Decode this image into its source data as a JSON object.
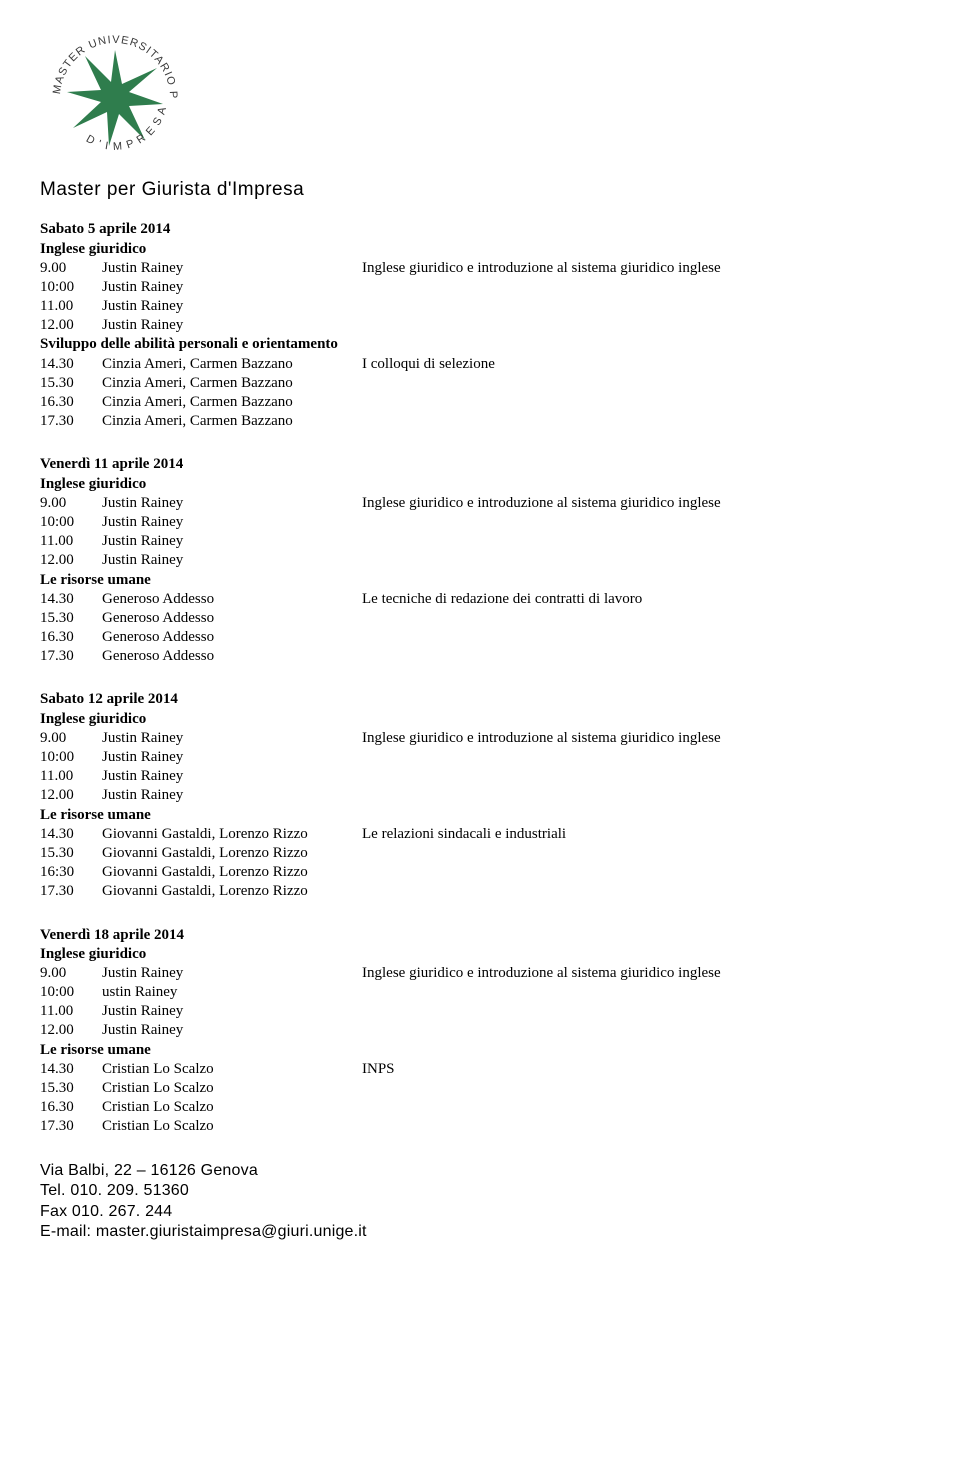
{
  "logo": {
    "circle_text": "MASTER UNIVERSITARIO PER GIURISTA D'IMPRESA",
    "star_color": "#2f7d4d",
    "circle_text_color": "#3a3a3a"
  },
  "header_title": "Master per Giurista d'Impresa",
  "days": [
    {
      "title": "Sabato 5 aprile 2014",
      "blocks": [
        {
          "heading": "Inglese giuridico",
          "rows": [
            {
              "time": " 9.00",
              "name": "Justin Rainey",
              "topic": "Inglese giuridico e introduzione al sistema giuridico inglese"
            },
            {
              "time": "10:00",
              "name": "Justin Rainey",
              "topic": ""
            },
            {
              "time": "11.00",
              "name": "Justin Rainey",
              "topic": ""
            },
            {
              "time": "12.00",
              "name": "Justin Rainey",
              "topic": ""
            }
          ]
        },
        {
          "heading": "Sviluppo delle abilità personali e orientamento",
          "rows": [
            {
              "time": "14.30",
              "name": "Cinzia Ameri, Carmen Bazzano",
              "topic": "I colloqui di selezione"
            },
            {
              "time": "15.30",
              "name": "Cinzia Ameri, Carmen Bazzano",
              "topic": ""
            },
            {
              "time": "16.30",
              "name": "Cinzia Ameri, Carmen Bazzano",
              "topic": ""
            },
            {
              "time": "17.30",
              "name": "Cinzia Ameri, Carmen Bazzano",
              "topic": ""
            }
          ]
        }
      ]
    },
    {
      "title": "Venerdì 11 aprile 2014",
      "blocks": [
        {
          "heading": "Inglese giuridico",
          "rows": [
            {
              "time": " 9.00",
              "name": "Justin Rainey",
              "topic": "Inglese giuridico e introduzione al sistema giuridico inglese"
            },
            {
              "time": "10:00",
              "name": "Justin Rainey",
              "topic": ""
            },
            {
              "time": "11.00",
              "name": "Justin Rainey",
              "topic": ""
            },
            {
              "time": "12.00",
              "name": "Justin Rainey",
              "topic": ""
            }
          ]
        },
        {
          "heading": "Le risorse umane",
          "rows": [
            {
              "time": "14.30",
              "name": "Generoso Addesso",
              "topic": "Le tecniche di redazione dei contratti di lavoro"
            },
            {
              "time": "15.30",
              "name": "Generoso Addesso",
              "topic": ""
            },
            {
              "time": "16.30",
              "name": "Generoso Addesso",
              "topic": ""
            },
            {
              "time": "17.30",
              "name": "Generoso Addesso",
              "topic": ""
            }
          ]
        }
      ]
    },
    {
      "title": "Sabato 12 aprile 2014",
      "blocks": [
        {
          "heading": "Inglese giuridico",
          "rows": [
            {
              "time": " 9.00",
              "name": "Justin Rainey",
              "topic": "Inglese giuridico e introduzione al sistema giuridico inglese"
            },
            {
              "time": "10:00",
              "name": "Justin Rainey",
              "topic": ""
            },
            {
              "time": "11.00",
              "name": "Justin Rainey",
              "topic": ""
            },
            {
              "time": "12.00",
              "name": "Justin Rainey",
              "topic": ""
            }
          ]
        },
        {
          "heading": "Le risorse umane",
          "rows": [
            {
              "time": "14.30",
              "name": "Giovanni Gastaldi, Lorenzo Rizzo",
              "topic": "Le relazioni sindacali e industriali"
            },
            {
              "time": "15.30",
              "name": "Giovanni Gastaldi, Lorenzo Rizzo",
              "topic": ""
            },
            {
              "time": "16:30",
              "name": "Giovanni Gastaldi, Lorenzo Rizzo",
              "topic": ""
            },
            {
              "time": "17.30",
              "name": " Giovanni Gastaldi, Lorenzo Rizzo",
              "topic": ""
            }
          ]
        }
      ]
    },
    {
      "title": "Venerdì 18 aprile 2014",
      "blocks": [
        {
          "heading": "Inglese giuridico",
          "rows": [
            {
              "time": " 9.00",
              "name": "Justin Rainey",
              "topic": "Inglese giuridico e introduzione al sistema giuridico inglese"
            },
            {
              "time": "10:00",
              "name": "ustin Rainey",
              "topic": ""
            },
            {
              "time": "11.00",
              "name": "Justin Rainey",
              "topic": ""
            },
            {
              "time": "12.00",
              "name": "Justin Rainey",
              "topic": ""
            }
          ]
        },
        {
          "heading": "Le risorse umane",
          "rows": [
            {
              "time": "14.30",
              "name": "Cristian Lo Scalzo",
              "topic": " INPS"
            },
            {
              "time": "15.30",
              "name": "Cristian Lo Scalzo",
              "topic": ""
            },
            {
              "time": "16.30",
              "name": "Cristian Lo Scalzo",
              "topic": ""
            },
            {
              "time": "17.30",
              "name": "Cristian Lo Scalzo",
              "topic": ""
            }
          ]
        }
      ]
    }
  ],
  "footer": {
    "line1": "Via Balbi, 22 – 16126 Genova",
    "line2": "Tel. 010. 209. 51360",
    "line3": "Fax 010. 267. 244",
    "line4": "E-mail: master.giuristaimpresa@giuri.unige.it"
  }
}
